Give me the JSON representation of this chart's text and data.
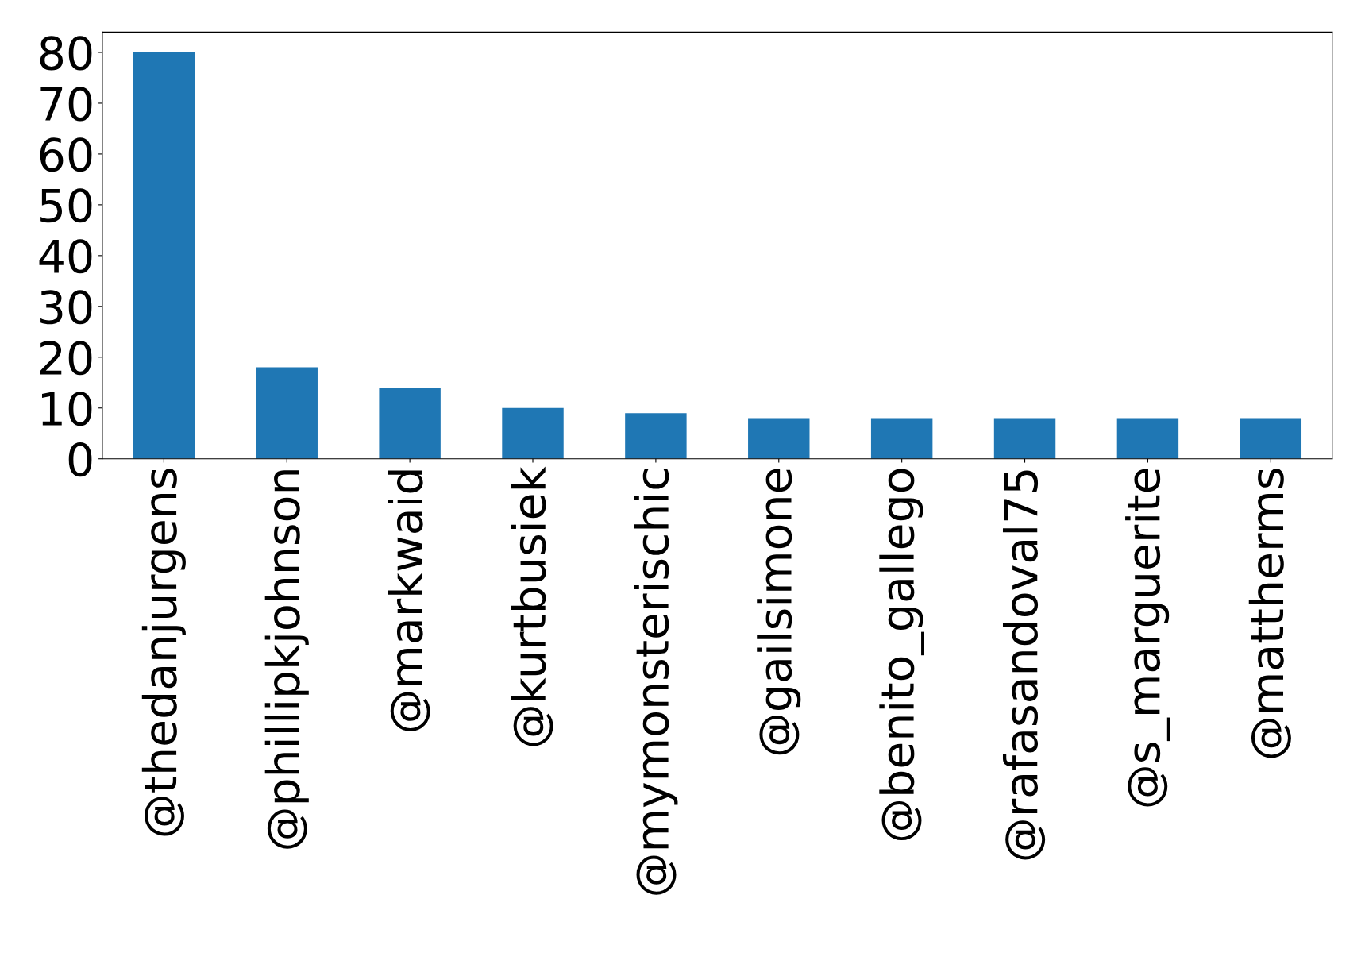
{
  "chart_data": {
    "type": "bar",
    "categories": [
      "@thedanjurgens",
      "@phillipkjohnson",
      "@markwaid",
      "@kurtbusiek",
      "@mymonsterischic",
      "@gailsimone",
      "@benito_gallego",
      "@rafasandoval75",
      "@s_marguerite",
      "@mattherms"
    ],
    "values": [
      80,
      18,
      14,
      10,
      9,
      8,
      8,
      8,
      8,
      8
    ],
    "color": "#1f77b4",
    "ylim": [
      0,
      84
    ],
    "yticks": [
      0,
      10,
      20,
      30,
      40,
      50,
      60,
      70,
      80
    ],
    "grid": false,
    "legend": false
  }
}
